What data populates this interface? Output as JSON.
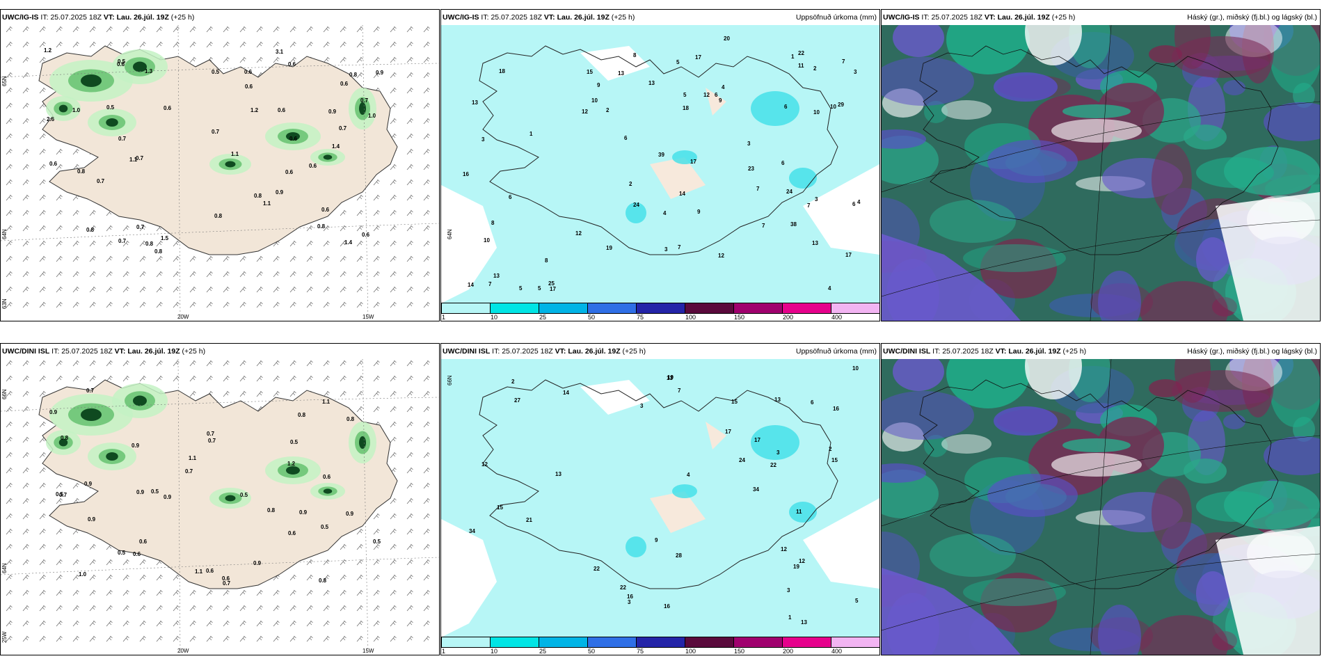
{
  "panels": {
    "ig_pcp": {
      "model": "UWC/IG-IS",
      "it_label": "IT:",
      "it": "25.07.2025 18Z",
      "vt_label": "VT:",
      "vt": "Lau. 26.júl. 19Z",
      "lead": "(+25 h)"
    },
    "ig_acc": {
      "model": "UWC/IG-IS",
      "it_label": "IT:",
      "it": "25.07.2025 18Z",
      "vt_label": "VT:",
      "vt": "Lau. 26.júl. 19Z",
      "lead": "(+25 h)",
      "right_title": "Uppsöfnuð úrkoma (mm)"
    },
    "ig_cld": {
      "model": "UWC/IG-IS",
      "it_label": "IT:",
      "it": "25.07.2025 18Z",
      "vt_label": "VT:",
      "vt": "Lau. 26.júl. 19Z",
      "lead": "(+25 h)",
      "right_title": "Háský (gr.), miðský (fj.bl.) og lágský (bl.)"
    },
    "dini_pcp": {
      "model": "UWC/DINI ISL",
      "it_label": "IT:",
      "it": "25.07.2025 18Z",
      "vt_label": "VT:",
      "vt": "Lau. 26.júl. 19Z",
      "lead": "(+25 h)"
    },
    "dini_acc": {
      "model": "UWC/DINI ISL",
      "it_label": "IT:",
      "it": "25.07.2025 18Z",
      "vt_label": "VT:",
      "vt": "Lau. 26.júl. 19Z",
      "lead": "(+25 h)",
      "right_title": "Uppsöfnuð úrkoma (mm)"
    },
    "dini_cld": {
      "model": "UWC/DINI ISL",
      "it_label": "IT:",
      "it": "25.07.2025 18Z",
      "vt_label": "VT:",
      "vt": "Lau. 26.júl. 19Z",
      "lead": "(+25 h)",
      "right_title": "Háský (gr.), miðský (fj.bl.) og lágský (bl.)"
    }
  },
  "axes": {
    "lat_66": "66N",
    "lat_64": "64N",
    "lat_65": "65N",
    "lat_63": "63N",
    "lon_20": "20W",
    "lon_15": "15W",
    "lon_25": "25W"
  },
  "colorbar": {
    "ticks": [
      "1",
      "10",
      "25",
      "50",
      "75",
      "100",
      "150",
      "200",
      "400"
    ],
    "colors": [
      "#b7f6f6",
      "#00e5e5",
      "#00b4e6",
      "#2f6fe6",
      "#2424a8",
      "#5a0a3c",
      "#a0006e",
      "#e6008c",
      "#f2b4f2"
    ]
  },
  "colors": {
    "land": "#f2e6d8",
    "sea": "#ffffff",
    "light_green": "#c4f2c4",
    "mid_green": "#5fbf6a",
    "dark_green": "#0f4a20",
    "cyan_fill": "#b7f6f6"
  },
  "ig_pcp_labels": [
    "1.0",
    "0.6",
    "0.7",
    "0.8",
    "0.5",
    "0.6",
    "0.6",
    "1.3",
    "0.8",
    "0.9",
    "0.8",
    "0.6",
    "0.6",
    "0.7",
    "0.6",
    "0.5",
    "1.1",
    "0.6",
    "0.8",
    "0.7",
    "0.8",
    "0.9",
    "0.6",
    "0.8",
    "1.1",
    "0.8",
    "0.6",
    "1.1",
    "0.6",
    "3.1",
    "1.4",
    "0.7",
    "0.9",
    "2.6",
    "0.8",
    "1.5",
    "0.6",
    "0.7",
    "1.2",
    "1.4",
    "0.7",
    "1.0",
    "0.7",
    "1.2",
    "0.6",
    "0.6",
    "0.5",
    "0.7"
  ],
  "dini_pcp_labels": [
    "0.9",
    "0.6",
    "0.9",
    "0.6",
    "0.9",
    "0.7",
    "1.0",
    "0.5",
    "0.7",
    "0.9",
    "0.7",
    "0.5",
    "0.8",
    "0.5",
    "0.9",
    "0.6",
    "0.6",
    "0.7",
    "1.2",
    "1.1",
    "0.5",
    "1.1",
    "0.9",
    "0.8",
    "0.6",
    "0.7",
    "0.9",
    "0.9",
    "0.6",
    "0.5",
    "0.8",
    "1.1",
    "0.9",
    "0.8",
    "0.8",
    "0.7",
    "0.5",
    "0.5"
  ],
  "ig_acc_labels": [
    "13",
    "7",
    "10",
    "8",
    "6",
    "10",
    "7",
    "6",
    "3",
    "5",
    "10",
    "7",
    "4",
    "9",
    "12",
    "6",
    "5",
    "8",
    "8",
    "12",
    "7",
    "3",
    "6",
    "12",
    "4",
    "13",
    "14",
    "17",
    "24",
    "15",
    "22",
    "17",
    "1",
    "13",
    "5",
    "2",
    "20",
    "39",
    "24",
    "3",
    "29",
    "17",
    "18",
    "38",
    "4",
    "12",
    "13",
    "17",
    "11",
    "25",
    "16",
    "13",
    "6",
    "9",
    "14",
    "19",
    "18",
    "23",
    "2",
    "3",
    "10",
    "4",
    "7",
    "2",
    "1",
    "6",
    "3",
    "5",
    "7",
    "9"
  ],
  "dini_acc_labels": [
    "13",
    "14",
    "13",
    "3",
    "2",
    "3",
    "12",
    "4",
    "15",
    "13",
    "28",
    "16",
    "19",
    "21",
    "34",
    "22",
    "3",
    "10",
    "19",
    "17",
    "24",
    "27",
    "22",
    "13",
    "17",
    "16",
    "22",
    "34",
    "12",
    "12",
    "15",
    "16",
    "15",
    "11",
    "5",
    "9",
    "7",
    "6",
    "1",
    "2",
    "3"
  ]
}
